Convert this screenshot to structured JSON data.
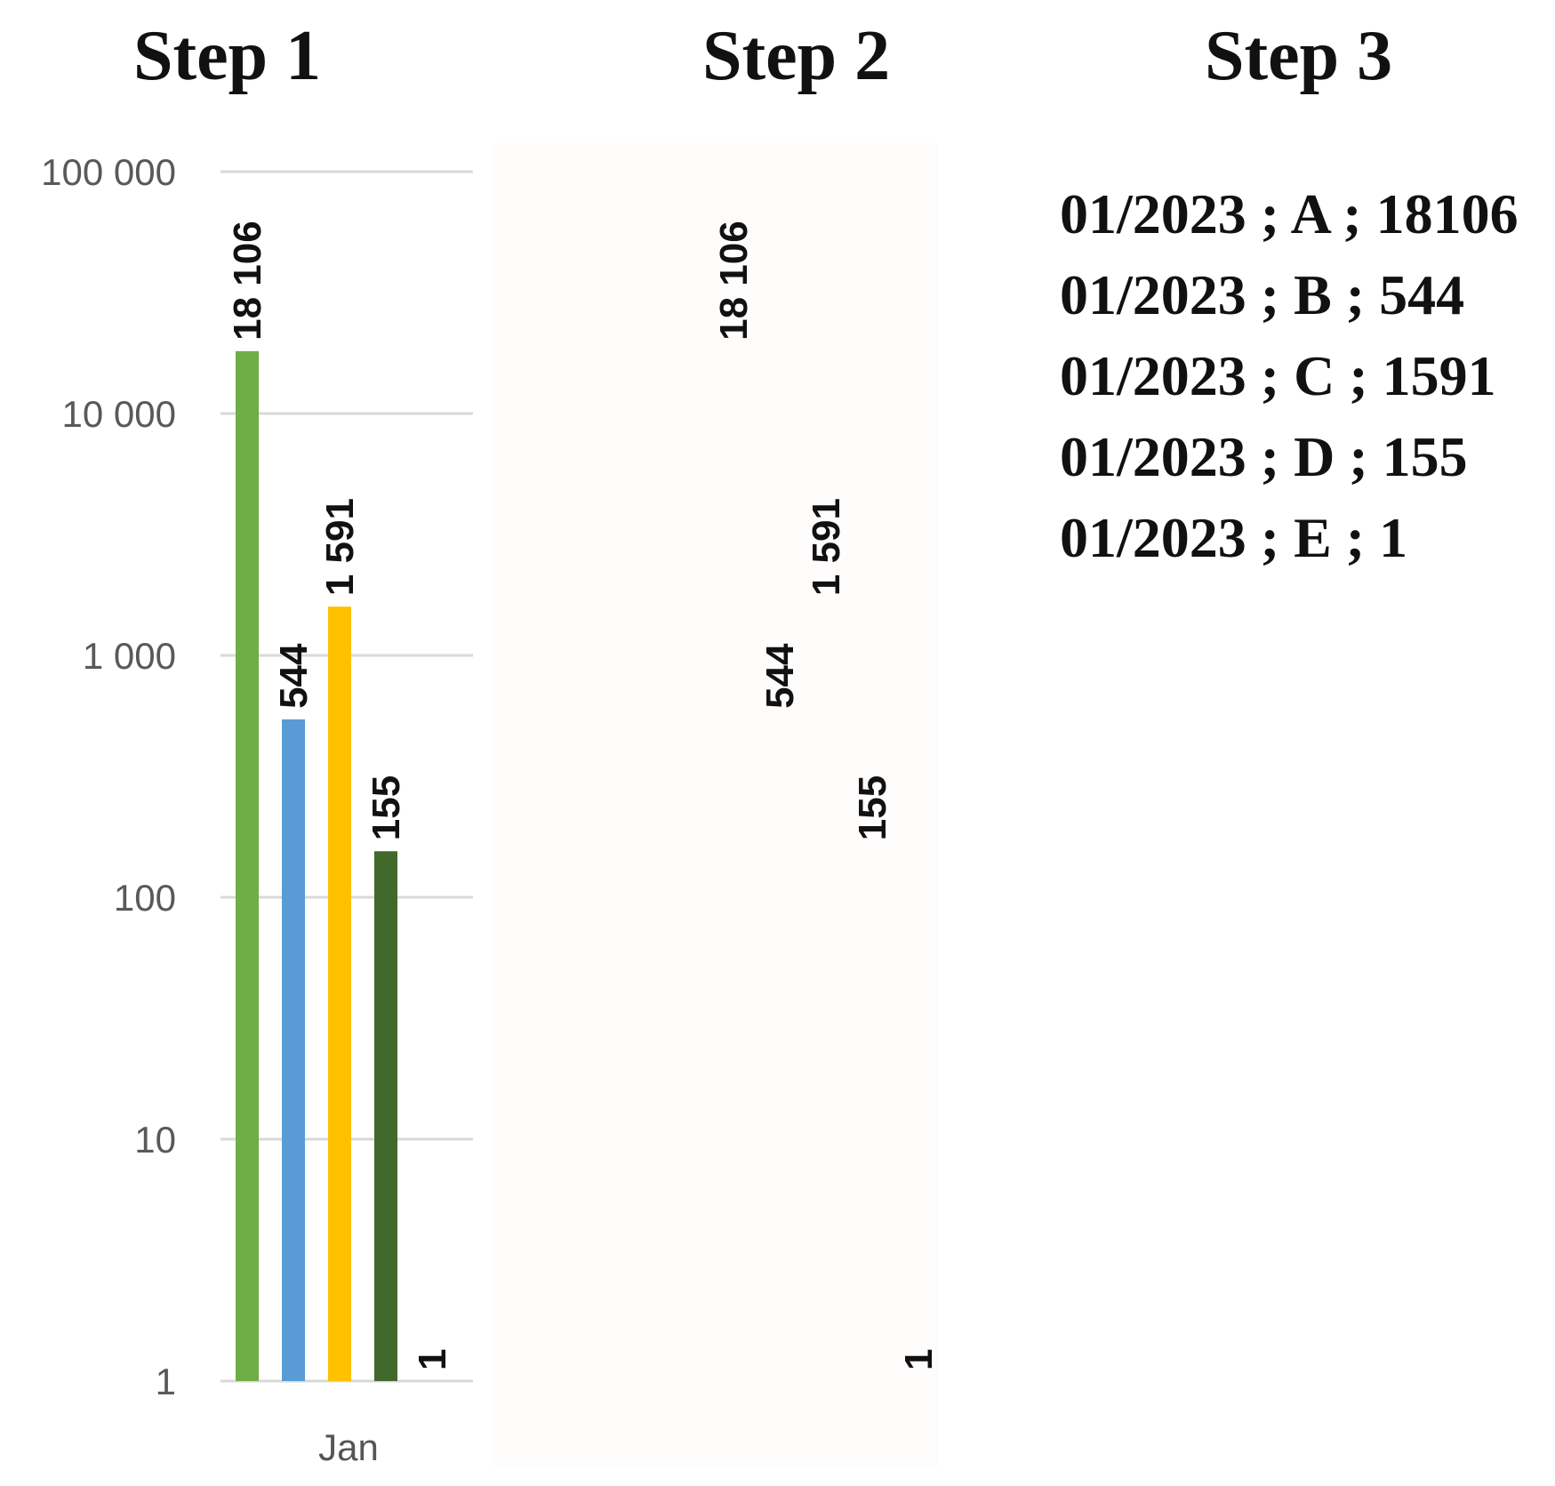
{
  "steps": {
    "step1": "Step 1",
    "step2": "Step 2",
    "step3": "Step 3"
  },
  "chart_data": {
    "type": "bar",
    "scale": "log",
    "ylim": [
      1,
      100000
    ],
    "y_ticks": [
      {
        "value": 1,
        "label": "1"
      },
      {
        "value": 10,
        "label": "10"
      },
      {
        "value": 100,
        "label": "100"
      },
      {
        "value": 1000,
        "label": "1 000"
      },
      {
        "value": 10000,
        "label": "10 000"
      },
      {
        "value": 100000,
        "label": "100 000"
      }
    ],
    "categories": [
      "Jan"
    ],
    "grid": true,
    "series": [
      {
        "value": 18106,
        "label": "18 106",
        "color": "#70ad47"
      },
      {
        "value": 544,
        "label": "544",
        "color": "#5b9bd5"
      },
      {
        "value": 1591,
        "label": "1 591",
        "color": "#ffc000"
      },
      {
        "value": 155,
        "label": "155",
        "color": "#43682b"
      },
      {
        "value": 1,
        "label": "1",
        "color": "#9e480e"
      }
    ]
  },
  "step3_records": [
    "01/2023 ; A ; 18106",
    "01/2023 ; B ; 544",
    "01/2023 ; C ; 1591",
    "01/2023 ; D ; 155",
    "01/2023 ; E ; 1"
  ]
}
